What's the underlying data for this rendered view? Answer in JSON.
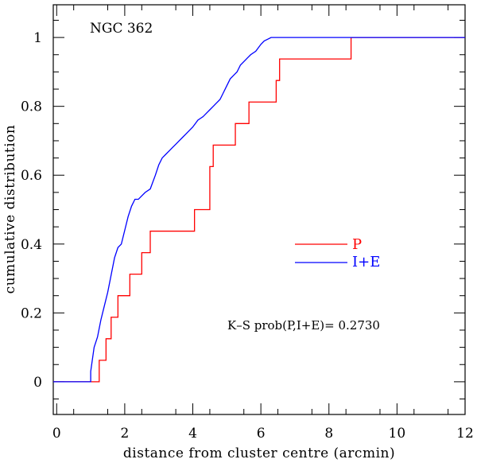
{
  "chart_data": {
    "type": "line",
    "title": "NGC 362",
    "xlabel": "distance from cluster centre (arcmin)",
    "ylabel": "cumulative distribution",
    "xlim": [
      -0.1,
      12
    ],
    "ylim": [
      -0.095,
      1.095
    ],
    "xticks": [
      0,
      2,
      4,
      6,
      8,
      10,
      12
    ],
    "xtick_labels": [
      "0",
      "2",
      "4",
      "6",
      "8",
      "10",
      "12"
    ],
    "yticks": [
      0,
      0.2,
      0.4,
      0.6,
      0.8,
      1
    ],
    "ytick_labels": [
      "0",
      "0.2",
      "0.4",
      "0.6",
      "0.8",
      "1"
    ],
    "annotation": "K–S prob(P,I+E)= 0.2730",
    "legend_position": "right-middle",
    "series": [
      {
        "name": "P",
        "color": "#ff0000",
        "x": [
          -0.1,
          1.25,
          1.25,
          1.45,
          1.45,
          1.6,
          1.6,
          1.8,
          1.8,
          2.15,
          2.15,
          2.5,
          2.5,
          2.75,
          2.75,
          4.05,
          4.05,
          4.5,
          4.5,
          4.6,
          4.6,
          5.25,
          5.25,
          5.65,
          5.65,
          6.45,
          6.45,
          6.55,
          6.55,
          8.65,
          8.65,
          12
        ],
        "y": [
          0,
          0,
          0.0625,
          0.0625,
          0.125,
          0.125,
          0.1875,
          0.1875,
          0.25,
          0.25,
          0.3125,
          0.3125,
          0.375,
          0.375,
          0.4375,
          0.4375,
          0.5,
          0.5,
          0.625,
          0.625,
          0.6875,
          0.6875,
          0.75,
          0.75,
          0.8125,
          0.8125,
          0.875,
          0.875,
          0.9375,
          0.9375,
          1,
          1
        ]
      },
      {
        "name": "I+E",
        "color": "#0000ff",
        "x": [
          -0.1,
          1.0,
          1.0,
          1.1,
          1.2,
          1.3,
          1.4,
          1.5,
          1.6,
          1.7,
          1.8,
          1.9,
          2.0,
          2.1,
          2.2,
          2.3,
          2.4,
          2.5,
          2.6,
          2.75,
          2.9,
          3.0,
          3.1,
          3.2,
          3.3,
          3.4,
          3.5,
          3.6,
          3.7,
          3.8,
          3.9,
          4.0,
          4.15,
          4.3,
          4.4,
          4.5,
          4.6,
          4.7,
          4.8,
          4.9,
          5.0,
          5.1,
          5.2,
          5.3,
          5.4,
          5.5,
          5.6,
          5.7,
          5.85,
          6.0,
          6.1,
          6.2,
          6.3,
          12
        ],
        "y": [
          0,
          0,
          0.03,
          0.1,
          0.13,
          0.18,
          0.22,
          0.26,
          0.31,
          0.36,
          0.39,
          0.4,
          0.44,
          0.48,
          0.51,
          0.53,
          0.53,
          0.54,
          0.55,
          0.56,
          0.6,
          0.63,
          0.65,
          0.66,
          0.67,
          0.68,
          0.69,
          0.7,
          0.71,
          0.72,
          0.73,
          0.74,
          0.76,
          0.77,
          0.78,
          0.79,
          0.8,
          0.81,
          0.82,
          0.84,
          0.86,
          0.88,
          0.89,
          0.9,
          0.92,
          0.93,
          0.94,
          0.95,
          0.96,
          0.98,
          0.99,
          0.995,
          1,
          1
        ]
      }
    ]
  }
}
